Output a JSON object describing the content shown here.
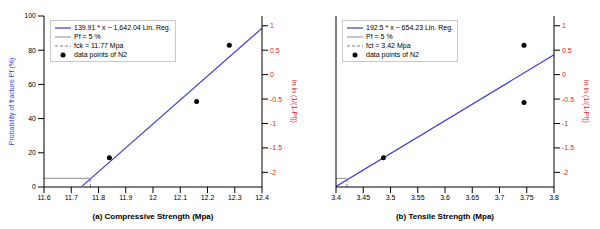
{
  "chart_data": [
    {
      "type": "line",
      "x_label": "(a) Compressive Strength (Mpa)",
      "y_label": "Probability of fracture Pf (%)",
      "y2_label": "ln ln (1/(1-Pf))",
      "xlim": [
        11.6,
        12.4
      ],
      "xticks": [
        11.6,
        11.7,
        11.8,
        11.9,
        12,
        12.1,
        12.2,
        12.3,
        12.4
      ],
      "ylim": [
        0,
        100
      ],
      "yticks": [
        0,
        20,
        40,
        60,
        80,
        100
      ],
      "y2lim": [
        -2.3,
        1.2
      ],
      "y2ticks": [
        -2,
        -1.5,
        -1,
        -0.5,
        0,
        0.5,
        1
      ],
      "legend": "upper left",
      "series": [
        {
          "name": "139.91 * x − 1,642.04 Lin. Reg.",
          "color": "#3b3bd1",
          "line_style": "solid",
          "marker": "none",
          "x": [
            11.74,
            12.4
          ],
          "values": [
            0.5,
            92.9
          ]
        },
        {
          "name": "Pf = 5 %",
          "color": "#a0a0a0",
          "line_style": "solid",
          "marker": "none",
          "x": [
            11.6,
            11.77
          ],
          "values": [
            5,
            5
          ]
        },
        {
          "name": "fck = 11.77 Mpa",
          "color": "#808080",
          "line_style": "dashed",
          "marker": "none",
          "x": [
            11.77,
            11.77
          ],
          "values": [
            0,
            5
          ]
        },
        {
          "name": "data points of N2",
          "type": "scatter",
          "color": "#000000",
          "marker": "circle",
          "axis": "y2",
          "x": [
            11.84,
            12.16,
            12.28
          ],
          "values": [
            -1.7,
            -0.55,
            0.6
          ]
        }
      ]
    },
    {
      "type": "line",
      "x_label": "(b) Tensile Strength (Mpa)",
      "y2_label": "ln ln (1/(1-Pf))",
      "xlim": [
        3.4,
        3.8
      ],
      "xticks": [
        3.4,
        3.45,
        3.5,
        3.55,
        3.6,
        3.65,
        3.7,
        3.75,
        3.8
      ],
      "ylim": [
        0,
        100
      ],
      "y2lim": [
        -2.3,
        1.2
      ],
      "y2ticks": [
        -2,
        -1.5,
        -1,
        -0.5,
        0,
        0.5,
        1
      ],
      "legend": "upper left",
      "series": [
        {
          "name": "192.5 * x − 654.23 Lin. Reg.",
          "color": "#3b3bd1",
          "line_style": "solid",
          "marker": "none",
          "x": [
            3.4,
            3.8
          ],
          "values": [
            0.3,
            77.3
          ]
        },
        {
          "name": "Pf = 5 %",
          "color": "#a0a0a0",
          "line_style": "solid",
          "marker": "none",
          "x": [
            3.4,
            3.42
          ],
          "values": [
            5,
            5
          ]
        },
        {
          "name": "fct = 3.42 Mpa",
          "color": "#808080",
          "line_style": "dashed",
          "marker": "none",
          "x": [
            3.42,
            3.42
          ],
          "values": [
            0,
            5
          ]
        },
        {
          "name": "data points of N2",
          "type": "scatter",
          "color": "#000000",
          "marker": "circle",
          "axis": "y2",
          "x": [
            3.487,
            3.745,
            3.745
          ],
          "values": [
            -1.7,
            0.6,
            -0.57
          ]
        }
      ]
    }
  ]
}
